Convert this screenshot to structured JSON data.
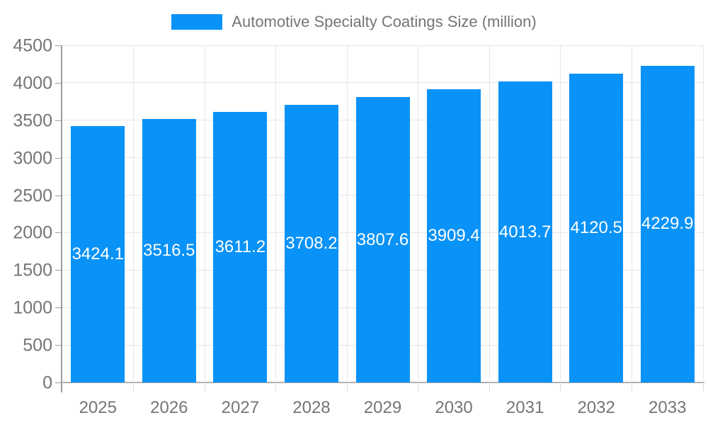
{
  "chart_data": {
    "type": "bar",
    "title": "Automotive Specialty Coatings Size (million)",
    "categories": [
      "2025",
      "2026",
      "2027",
      "2028",
      "2029",
      "2030",
      "2031",
      "2032",
      "2033"
    ],
    "values": [
      3424.1,
      3516.5,
      3611.2,
      3708.2,
      3807.6,
      3909.4,
      4013.7,
      4120.5,
      4229.9
    ],
    "xlabel": "",
    "ylabel": "",
    "ylim": [
      0,
      4500
    ],
    "ytick_step": 500,
    "grid": "on",
    "legend_position": "top-center",
    "colors": {
      "bar": "#0992F7",
      "grid_line": "#e6e6e6",
      "axis_line": "#9e9e9e",
      "tick_label": "#757575",
      "legend_text": "#757575",
      "value_label": "#ffffff"
    }
  }
}
